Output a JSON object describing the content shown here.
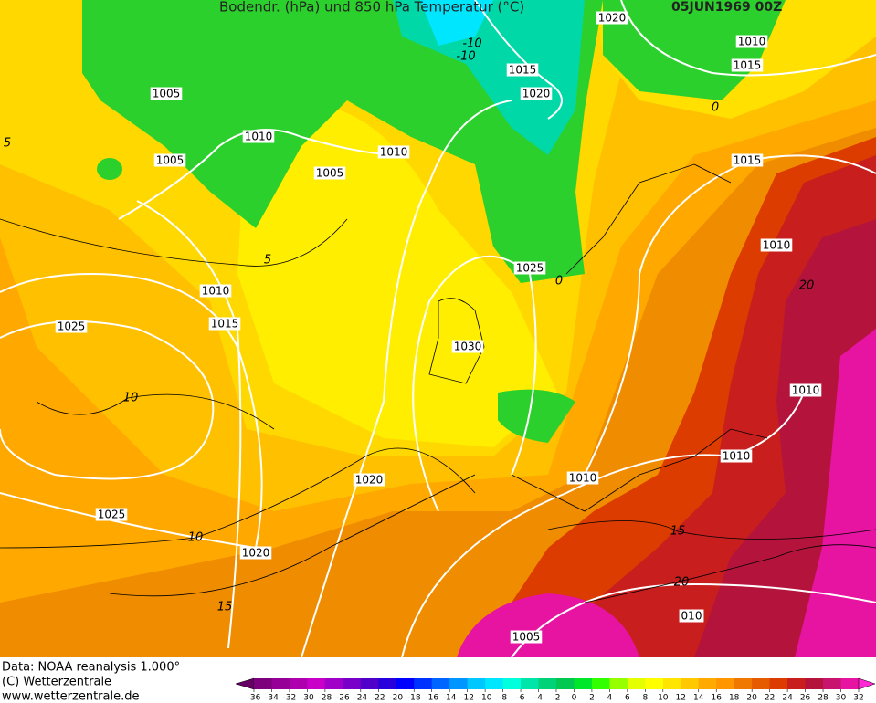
{
  "header": {
    "title": "Bodendr. (hPa) und 850 hPa Temperatur (°C)",
    "date": "05JUN1969 00Z"
  },
  "isobar_labels": [
    "1020",
    "1010",
    "1015",
    "1015",
    "1020",
    "1005",
    "1010",
    "1010",
    "1005",
    "1005",
    "1015",
    "1010",
    "1025",
    "1010",
    "1015",
    "1025",
    "1030",
    "1010",
    "1010",
    "1020",
    "1010",
    "1025",
    "1020",
    "1005",
    "010"
  ],
  "isotherm_labels": [
    "-10",
    "-10",
    "0",
    "5",
    "5",
    "0",
    "10",
    "10",
    "15",
    "15",
    "20",
    "20"
  ],
  "footer": {
    "lines": [
      "Data: NOAA reanalysis 1.000°",
      "(C) Wetterzentrale",
      "www.wetterzentrale.de"
    ]
  },
  "colorbar": {
    "ticks": [
      -36,
      -34,
      -32,
      -30,
      -28,
      -26,
      -24,
      -22,
      -20,
      -18,
      -16,
      -14,
      -12,
      -10,
      -8,
      -6,
      -4,
      -2,
      0,
      2,
      4,
      6,
      8,
      10,
      12,
      14,
      16,
      18,
      20,
      22,
      24,
      26,
      28,
      30,
      32
    ],
    "colors": [
      "#640064",
      "#7d007d",
      "#960096",
      "#af00af",
      "#c800c8",
      "#a000c8",
      "#7800c8",
      "#5000c8",
      "#2800dc",
      "#0000ff",
      "#0032ff",
      "#0064ff",
      "#0096ff",
      "#00c8ff",
      "#00e6ff",
      "#00ffdc",
      "#00e6aa",
      "#00d278",
      "#00c850",
      "#00e628",
      "#32ff00",
      "#96ff00",
      "#e6ff00",
      "#ffff00",
      "#ffe600",
      "#ffc800",
      "#ffaa00",
      "#ff9600",
      "#f07800",
      "#e65a00",
      "#dc3c00",
      "#c81e1e",
      "#b4143c",
      "#c8146e",
      "#e614a0",
      "#ff28d2"
    ]
  }
}
